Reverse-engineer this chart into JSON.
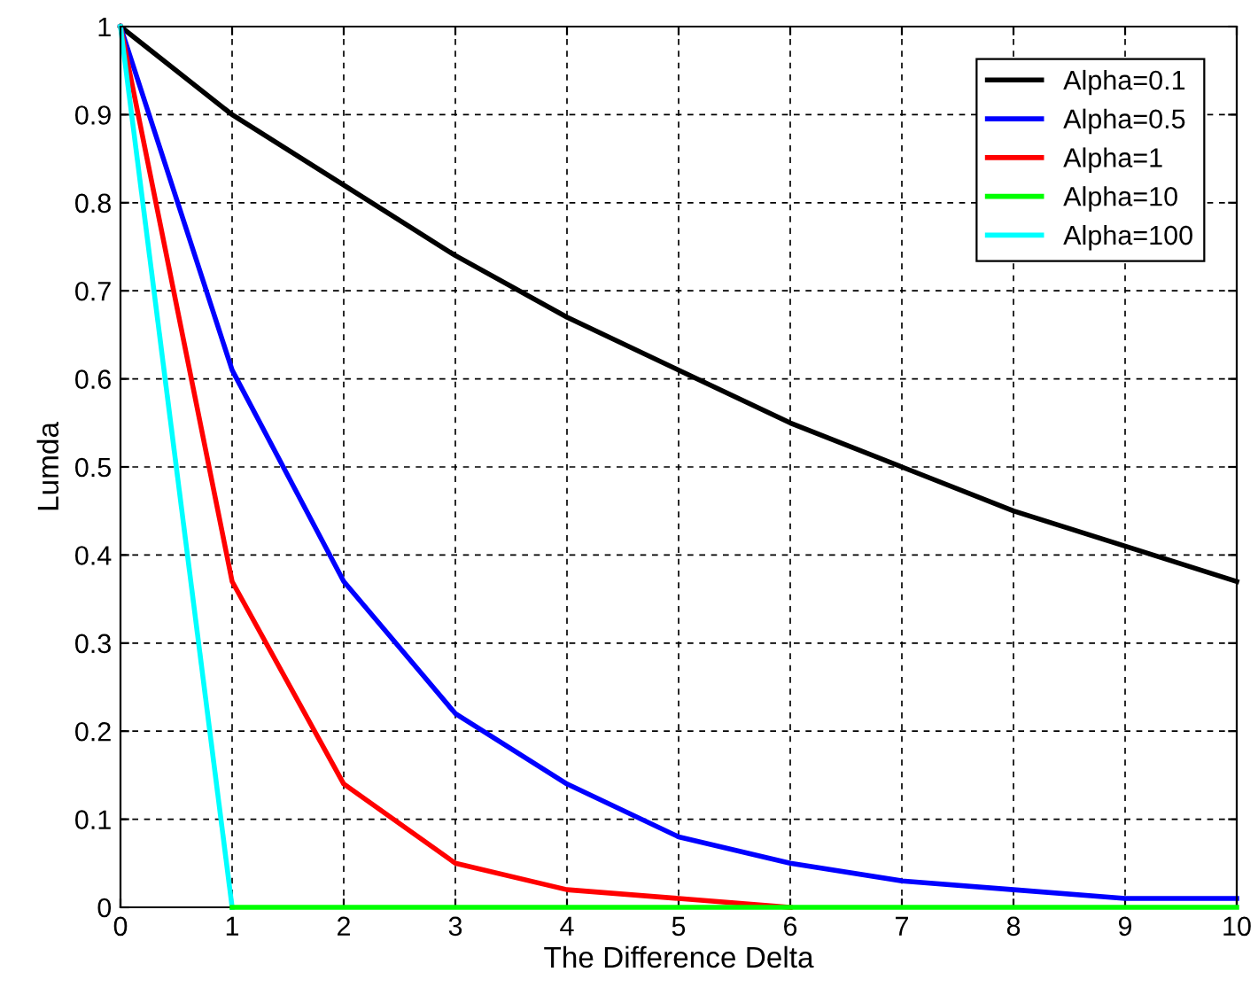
{
  "chart_data": {
    "type": "line",
    "xlabel": "The Difference Delta",
    "ylabel": "Lumda",
    "x": [
      0,
      1,
      2,
      3,
      4,
      5,
      6,
      7,
      8,
      9,
      10
    ],
    "series": [
      {
        "name": "Alpha=0.1",
        "color": "#000000",
        "values": [
          1,
          0.9,
          0.82,
          0.74,
          0.67,
          0.61,
          0.55,
          0.5,
          0.45,
          0.41,
          0.37
        ]
      },
      {
        "name": "Alpha=0.5",
        "color": "#0000ff",
        "values": [
          1,
          0.61,
          0.37,
          0.22,
          0.14,
          0.08,
          0.05,
          0.03,
          0.02,
          0.01,
          0.01
        ]
      },
      {
        "name": "Alpha=1",
        "color": "#ff0000",
        "values": [
          1,
          0.37,
          0.14,
          0.05,
          0.02,
          0.01,
          0,
          null,
          null,
          null,
          null
        ]
      },
      {
        "name": "Alpha=10",
        "color": "#00ff00",
        "values": [
          null,
          0,
          0,
          0,
          0,
          0,
          0,
          0,
          0,
          0,
          0
        ]
      },
      {
        "name": "Alpha=100",
        "color": "#00ffff",
        "values": [
          1,
          0,
          null,
          null,
          null,
          null,
          null,
          null,
          null,
          null,
          null
        ]
      }
    ],
    "xlim": [
      0,
      10
    ],
    "ylim": [
      0,
      1
    ],
    "xticks": [
      0,
      1,
      2,
      3,
      4,
      5,
      6,
      7,
      8,
      9,
      10
    ],
    "yticks": [
      0,
      0.1,
      0.2,
      0.3,
      0.4,
      0.5,
      0.6,
      0.7,
      0.8,
      0.9,
      1
    ],
    "grid": true,
    "legend": "top right",
    "marker": "none",
    "line_style": "solid"
  }
}
